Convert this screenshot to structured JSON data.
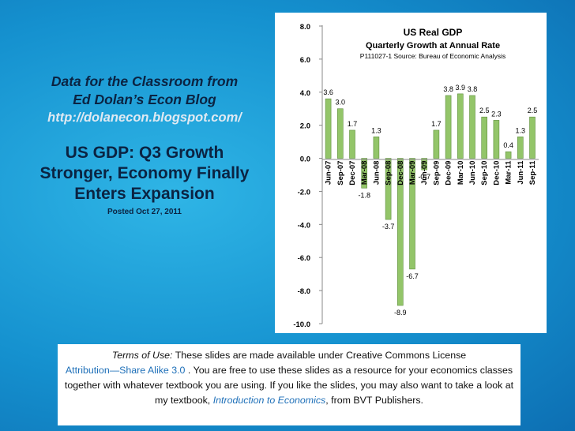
{
  "left_panel": {
    "blog_line1": "Data for the Classroom from",
    "blog_line2": "Ed Dolan’s Econ Blog",
    "blog_url": "http://dolanecon.blogspot.com/",
    "headline_line1": "US GDP: Q3 Growth",
    "headline_line2": "Stronger, Economy Finally",
    "headline_line3": "Enters Expansion",
    "posted": "Posted  Oct 27, 2011"
  },
  "terms": {
    "label": "Terms of Use:",
    "text1": "These slides are made available under Creative Commons License",
    "license": "Attribution—Share Alike 3.0",
    "text2": ". You are free to use these slides as a resource for your economics classes together with whatever textbook you are using. If you like the slides, you may also want to take a look at my textbook, ",
    "book": "Introduction to Economics",
    "text3": ", from BVT Publishers."
  },
  "chart_data": {
    "type": "bar",
    "title": "US  Real GDP",
    "subtitle": "Quarterly Growth at Annual Rate",
    "source": "P111027-1 Source: Bureau of Economic Analysis",
    "categories": [
      "Jun-07",
      "Sep-07",
      "Dec-07",
      "Mar-08",
      "Jun-08",
      "Sep-08",
      "Dec-08",
      "Mar-09",
      "Jun-09",
      "Sep-09",
      "Dec-09",
      "Mar-10",
      "Jun-10",
      "Sep-10",
      "Dec-10",
      "Mar-11",
      "Jun-11",
      "Sep-11"
    ],
    "values": [
      3.6,
      3.0,
      1.7,
      -1.8,
      1.3,
      -3.7,
      -8.9,
      -6.7,
      -0.7,
      1.7,
      3.8,
      3.9,
      3.8,
      2.5,
      2.3,
      0.4,
      1.3,
      2.5
    ],
    "data_labels": [
      "3.6",
      "3.0",
      "1.7",
      "-1.8",
      "1.3",
      "-3.7",
      "-8.9",
      "-6.7",
      "-0.7",
      "1.7",
      "3.8",
      "3.9",
      "3.8",
      "2.5",
      "2.3",
      "0.4",
      "1.3",
      "2.5"
    ],
    "y_ticks": [
      "8.0",
      "6.0",
      "4.0",
      "2.0",
      "0.0",
      "-2.0",
      "-4.0",
      "-6.0",
      "-8.0",
      "-10.0"
    ],
    "ylim": [
      -10,
      8
    ],
    "bar_color": "#93c569",
    "bar_edge_color": "#5f8f3e",
    "grid": false,
    "legend": "none"
  }
}
